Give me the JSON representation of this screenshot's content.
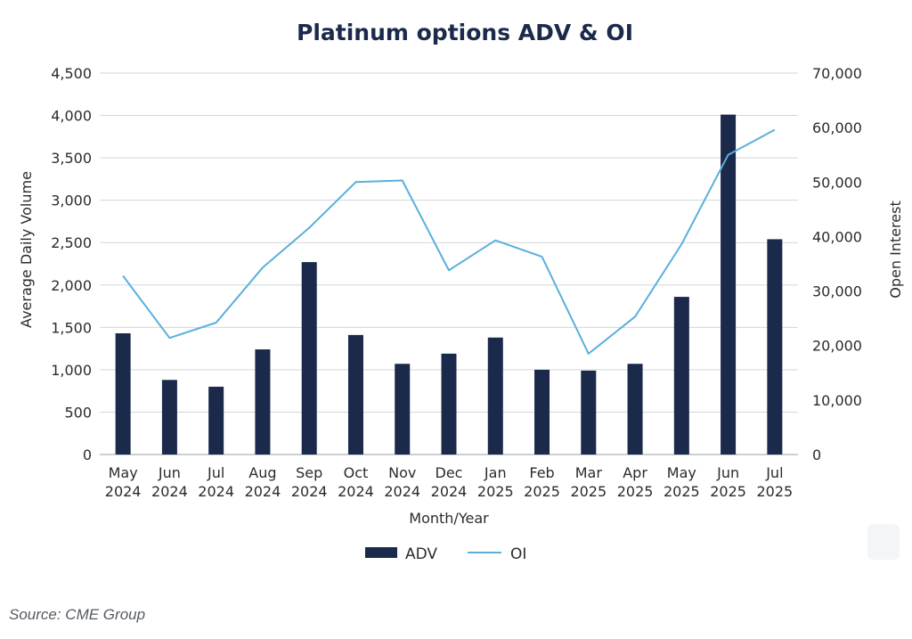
{
  "source_note": "Source: CME Group",
  "chart_data": {
    "type": "bar+line",
    "title": "Platinum options ADV & OI",
    "xlabel": "Month/Year",
    "ylabel_left": "Average Daily Volume",
    "ylabel_right": "Open Interest",
    "categories": [
      [
        "May",
        "2024"
      ],
      [
        "Jun",
        "2024"
      ],
      [
        "Jul",
        "2024"
      ],
      [
        "Aug",
        "2024"
      ],
      [
        "Sep",
        "2024"
      ],
      [
        "Oct",
        "2024"
      ],
      [
        "Nov",
        "2024"
      ],
      [
        "Dec",
        "2024"
      ],
      [
        "Jan",
        "2025"
      ],
      [
        "Feb",
        "2025"
      ],
      [
        "Mar",
        "2025"
      ],
      [
        "Apr",
        "2025"
      ],
      [
        "May",
        "2025"
      ],
      [
        "Jun",
        "2025"
      ],
      [
        "Jul",
        "2025"
      ]
    ],
    "ylim_left": [
      0,
      4500
    ],
    "ylim_right": [
      0,
      70000
    ],
    "left_ticks": [
      0,
      500,
      1000,
      1500,
      2000,
      2500,
      3000,
      3500,
      4000,
      4500
    ],
    "left_tick_labels": [
      "0",
      "500",
      "1,000",
      "1,500",
      "2,000",
      "2,500",
      "3,000",
      "3,500",
      "4,000",
      "4,500"
    ],
    "right_ticks": [
      0,
      10000,
      20000,
      30000,
      40000,
      50000,
      60000,
      70000
    ],
    "right_tick_labels": [
      "0",
      "10,000",
      "20,000",
      "30,000",
      "40,000",
      "50,000",
      "60,000",
      "70,000"
    ],
    "grid": true,
    "legend_position": "bottom-center",
    "series": [
      {
        "name": "ADV",
        "type": "bar",
        "axis": "left",
        "color": "#1b2a4a",
        "values": [
          1430,
          880,
          800,
          1240,
          2270,
          1410,
          1070,
          1190,
          1380,
          1000,
          990,
          1070,
          1860,
          4010,
          2540
        ]
      },
      {
        "name": "OI",
        "type": "line",
        "axis": "right",
        "color": "#5aafdc",
        "values": [
          32800,
          21400,
          24200,
          34300,
          41600,
          50000,
          50300,
          33800,
          39300,
          36300,
          18500,
          25300,
          38600,
          55000,
          59600
        ]
      }
    ]
  }
}
